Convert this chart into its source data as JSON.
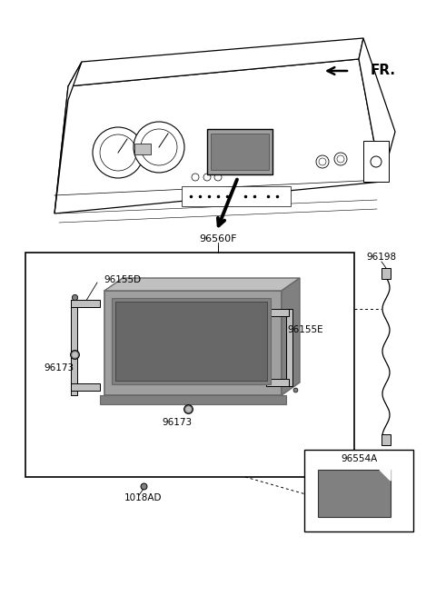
{
  "bg_color": "#ffffff",
  "lc": "#000000",
  "gray1": "#a0a0a0",
  "gray2": "#c0c0c0",
  "gray3": "#808080",
  "gray4": "#686868",
  "FR_label": "FR.",
  "label_96560F": "96560F",
  "label_96155D": "96155D",
  "label_96155E": "96155E",
  "label_96173a": "96173",
  "label_96173b": "96173",
  "label_96198": "96198",
  "label_96554A": "96554A",
  "label_1018AD": "1018AD",
  "fig_width": 4.8,
  "fig_height": 6.56,
  "dpi": 100
}
